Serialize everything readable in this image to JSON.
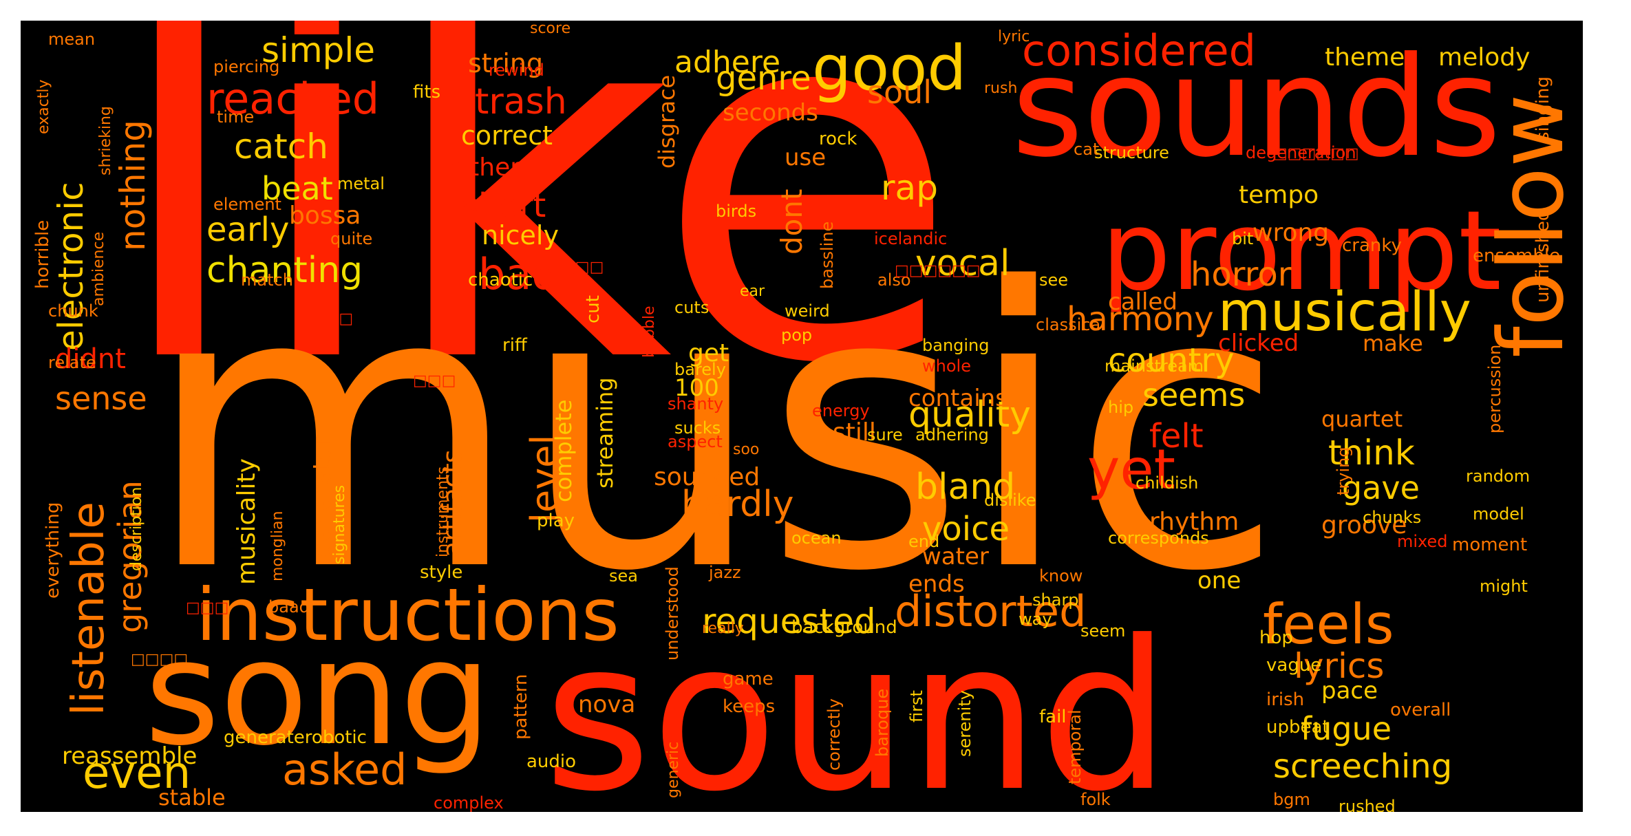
{
  "colors": {
    "page_background": "#ffffff",
    "cloud_background": "#000000",
    "red": "#ff2200",
    "orange": "#ff7700",
    "yellow": "#ffcc00",
    "pale_yellow": "#f0e000"
  },
  "words": [
    {
      "text": "like",
      "color": "#ff2200"
    },
    {
      "text": "music",
      "color": "#ff7700"
    },
    {
      "text": "sound",
      "color": "#ff2200"
    },
    {
      "text": "sounds",
      "color": "#ff2200"
    },
    {
      "text": "song",
      "color": "#ff7700"
    },
    {
      "text": "prompt",
      "color": "#ff2200"
    },
    {
      "text": "follow",
      "color": "#ff7700"
    },
    {
      "text": "instructions",
      "color": "#ff7700"
    },
    {
      "text": "good",
      "color": "#ffcc00"
    },
    {
      "text": "considered",
      "color": "#ff2200"
    },
    {
      "text": "musically",
      "color": "#ffcc00"
    },
    {
      "text": "feels",
      "color": "#ff7700"
    },
    {
      "text": "listenable",
      "color": "#ff7700"
    },
    {
      "text": "distorted",
      "color": "#ff7700"
    },
    {
      "text": "yet",
      "color": "#ff2200"
    },
    {
      "text": "even",
      "color": "#ffcc00"
    },
    {
      "text": "asked",
      "color": "#ff7700"
    },
    {
      "text": "reached",
      "color": "#ff2200"
    },
    {
      "text": "chanting",
      "color": "#f0e000"
    },
    {
      "text": "electronic",
      "color": "#ffcc00"
    },
    {
      "text": "quality",
      "color": "#ffcc00"
    },
    {
      "text": "requested",
      "color": "#ffcc00"
    },
    {
      "text": "screeching",
      "color": "#ffcc00"
    },
    {
      "text": "level",
      "color": "#ff7700"
    },
    {
      "text": "harmony",
      "color": "#ff7700"
    },
    {
      "text": "bland",
      "color": "#ffcc00"
    },
    {
      "text": "hardly",
      "color": "#ff7700"
    },
    {
      "text": "vocal",
      "color": "#ffcc00"
    },
    {
      "text": "lyrics",
      "color": "#ff7700"
    },
    {
      "text": "nothing",
      "color": "#ff7700"
    },
    {
      "text": "bad",
      "color": "#ff2200"
    },
    {
      "text": "trash",
      "color": "#ff2200"
    },
    {
      "text": "simple",
      "color": "#ffcc00"
    },
    {
      "text": "catch",
      "color": "#ffcc00"
    },
    {
      "text": "beat",
      "color": "#f0e000"
    },
    {
      "text": "early",
      "color": "#ffcc00"
    },
    {
      "text": "genre",
      "color": "#ffcc00"
    },
    {
      "text": "adhere",
      "color": "#ffcc00"
    },
    {
      "text": "soul",
      "color": "#ff7700"
    },
    {
      "text": "short",
      "color": "#ff2200"
    },
    {
      "text": "rap",
      "color": "#ffcc00"
    },
    {
      "text": "horror",
      "color": "#ff7700"
    },
    {
      "text": "country",
      "color": "#ffcc00"
    },
    {
      "text": "seems",
      "color": "#ffcc00"
    },
    {
      "text": "felt",
      "color": "#ff2200"
    },
    {
      "text": "think",
      "color": "#ffcc00"
    },
    {
      "text": "gave",
      "color": "#ffcc00"
    },
    {
      "text": "fugue",
      "color": "#ffcc00"
    },
    {
      "text": "voice",
      "color": "#ffcc00"
    },
    {
      "text": "gregorian",
      "color": "#ff7700"
    },
    {
      "text": "sense",
      "color": "#ff7700"
    },
    {
      "text": "didnt",
      "color": "#ff2200"
    },
    {
      "text": "dont",
      "color": "#ff7700"
    },
    {
      "text": "string",
      "color": "#ff7700"
    },
    {
      "text": "correct",
      "color": "#ffcc00"
    },
    {
      "text": "either",
      "color": "#ff2200"
    },
    {
      "text": "nicely",
      "color": "#ffcc00"
    },
    {
      "text": "bossa",
      "color": "#ff7700"
    },
    {
      "text": "theme",
      "color": "#ffcc00"
    },
    {
      "text": "melody",
      "color": "#ffcc00"
    },
    {
      "text": "seconds",
      "color": "#ff7700"
    },
    {
      "text": "tempo",
      "color": "#ffcc00"
    },
    {
      "text": "wrong",
      "color": "#ff7700"
    },
    {
      "text": "use",
      "color": "#ff7700"
    },
    {
      "text": "rock",
      "color": "#ffcc00"
    },
    {
      "text": "disgrace",
      "color": "#ff7700"
    },
    {
      "text": "called",
      "color": "#ff7700"
    },
    {
      "text": "clicked",
      "color": "#ff2200"
    },
    {
      "text": "make",
      "color": "#ff7700"
    },
    {
      "text": "contains",
      "color": "#ff7700"
    },
    {
      "text": "still",
      "color": "#ff7700"
    },
    {
      "text": "get",
      "color": "#ffcc00"
    },
    {
      "text": "100",
      "color": "#ffcc00"
    },
    {
      "text": "complete",
      "color": "#ffcc00"
    },
    {
      "text": "streaming",
      "color": "#ffcc00"
    },
    {
      "text": "artifacts",
      "color": "#ff7700"
    },
    {
      "text": "generator",
      "color": "#ff7700"
    },
    {
      "text": "musicality",
      "color": "#ffcc00"
    },
    {
      "text": "rhythm",
      "color": "#ff7700"
    },
    {
      "text": "groove",
      "color": "#ff7700"
    },
    {
      "text": "quartet",
      "color": "#ff7700"
    },
    {
      "text": "water",
      "color": "#ff7700"
    },
    {
      "text": "sounded",
      "color": "#ff7700"
    },
    {
      "text": "ends",
      "color": "#ff7700"
    },
    {
      "text": "one",
      "color": "#ffcc00"
    },
    {
      "text": "pace",
      "color": "#ffcc00"
    },
    {
      "text": "nova",
      "color": "#ff7700"
    },
    {
      "text": "reassemble",
      "color": "#ffcc00"
    },
    {
      "text": "stable",
      "color": "#ff7700"
    },
    {
      "text": "piercing",
      "color": "#ff7700"
    },
    {
      "text": "rewind",
      "color": "#ff2200"
    },
    {
      "text": "fits",
      "color": "#ffcc00"
    },
    {
      "text": "time",
      "color": "#ff7700"
    },
    {
      "text": "mean",
      "color": "#ff7700"
    },
    {
      "text": "score",
      "color": "#ff7700"
    },
    {
      "text": "lyric",
      "color": "#ff7700"
    },
    {
      "text": "rush",
      "color": "#ff7700"
    },
    {
      "text": "metal",
      "color": "#ffcc00"
    },
    {
      "text": "element",
      "color": "#ff7700"
    },
    {
      "text": "quite",
      "color": "#ff7700"
    },
    {
      "text": "birds",
      "color": "#ffcc00"
    },
    {
      "text": "bassline",
      "color": "#ff7700"
    },
    {
      "text": "icelandic",
      "color": "#ff2200"
    },
    {
      "text": "bit",
      "color": "#ffcc00"
    },
    {
      "text": "cranky",
      "color": "#ff7700"
    },
    {
      "text": "ensemble",
      "color": "#ff7700"
    },
    {
      "text": "singing",
      "color": "#ff7700"
    },
    {
      "text": "unfinished",
      "color": "#ff7700"
    },
    {
      "text": "structure",
      "color": "#ffcc00"
    },
    {
      "text": "degeneration",
      "color": "#ff2200"
    },
    {
      "text": "cat",
      "color": "#ff7700"
    },
    {
      "text": "also",
      "color": "#ff7700"
    },
    {
      "text": "see",
      "color": "#ffcc00"
    },
    {
      "text": "ear",
      "color": "#ffcc00"
    },
    {
      "text": "weird",
      "color": "#ffcc00"
    },
    {
      "text": "pop",
      "color": "#ffcc00"
    },
    {
      "text": "cuts",
      "color": "#ffcc00"
    },
    {
      "text": "riff",
      "color": "#ffcc00"
    },
    {
      "text": "barely",
      "color": "#ffcc00"
    },
    {
      "text": "banging",
      "color": "#ffcc00"
    },
    {
      "text": "whole",
      "color": "#ff2200"
    },
    {
      "text": "classical",
      "color": "#ff7700"
    },
    {
      "text": "mainstream",
      "color": "#ffcc00"
    },
    {
      "text": "hip",
      "color": "#ffcc00"
    },
    {
      "text": "percussion",
      "color": "#ff7700"
    },
    {
      "text": "trying",
      "color": "#ff7700"
    },
    {
      "text": "random",
      "color": "#ffcc00"
    },
    {
      "text": "model",
      "color": "#ffcc00"
    },
    {
      "text": "moment",
      "color": "#ff7700"
    },
    {
      "text": "might",
      "color": "#ffcc00"
    },
    {
      "text": "chunks",
      "color": "#ffcc00"
    },
    {
      "text": "mixed",
      "color": "#ff2200"
    },
    {
      "text": "corresponds",
      "color": "#ffcc00"
    },
    {
      "text": "childish",
      "color": "#ffcc00"
    },
    {
      "text": "dislike",
      "color": "#ffcc00"
    },
    {
      "text": "adhering",
      "color": "#ffcc00"
    },
    {
      "text": "sure",
      "color": "#ffcc00"
    },
    {
      "text": "energy",
      "color": "#ff2200"
    },
    {
      "text": "shanty",
      "color": "#ff2200"
    },
    {
      "text": "aspect",
      "color": "#ff2200"
    },
    {
      "text": "sucks",
      "color": "#ffcc00"
    },
    {
      "text": "soo",
      "color": "#ff7700"
    },
    {
      "text": "ocean",
      "color": "#ffcc00"
    },
    {
      "text": "end",
      "color": "#ffcc00"
    },
    {
      "text": "play",
      "color": "#ffcc00"
    },
    {
      "text": "jazz",
      "color": "#ff7700"
    },
    {
      "text": "sea",
      "color": "#ffcc00"
    },
    {
      "text": "style",
      "color": "#ffcc00"
    },
    {
      "text": "baad",
      "color": "#ff7700"
    },
    {
      "text": "know",
      "color": "#ff7700"
    },
    {
      "text": "sharp",
      "color": "#ffcc00"
    },
    {
      "text": "way",
      "color": "#ffcc00"
    },
    {
      "text": "seem",
      "color": "#ffcc00"
    },
    {
      "text": "background",
      "color": "#ffcc00"
    },
    {
      "text": "really",
      "color": "#ff7700"
    },
    {
      "text": "hop",
      "color": "#ffcc00"
    },
    {
      "text": "vague",
      "color": "#ffcc00"
    },
    {
      "text": "irish",
      "color": "#ff7700"
    },
    {
      "text": "upbeat",
      "color": "#ffcc00"
    },
    {
      "text": "overall",
      "color": "#ff7700"
    },
    {
      "text": "rushed",
      "color": "#ffcc00"
    },
    {
      "text": "bgm",
      "color": "#ff7700"
    },
    {
      "text": "folk",
      "color": "#ff7700"
    },
    {
      "text": "fail",
      "color": "#ffcc00"
    },
    {
      "text": "game",
      "color": "#ff7700"
    },
    {
      "text": "keeps",
      "color": "#ff7700"
    },
    {
      "text": "generaterobotic",
      "color": "#ffcc00"
    },
    {
      "text": "audio",
      "color": "#ffcc00"
    },
    {
      "text": "complex",
      "color": "#ff2200"
    },
    {
      "text": "pattern",
      "color": "#ff7700"
    },
    {
      "text": "understood",
      "color": "#ff7700"
    },
    {
      "text": "generic",
      "color": "#ff7700"
    },
    {
      "text": "temporal",
      "color": "#ff7700"
    },
    {
      "text": "correctly",
      "color": "#ff7700"
    },
    {
      "text": "baroque",
      "color": "#ff7700"
    },
    {
      "text": "first",
      "color": "#ffcc00"
    },
    {
      "text": "serenity",
      "color": "#ffcc00"
    },
    {
      "text": "cut",
      "color": "#ffcc00"
    },
    {
      "text": "chaotic",
      "color": "#ffcc00"
    },
    {
      "text": "bubble",
      "color": "#ff2200"
    },
    {
      "text": "match",
      "color": "#ff7700"
    },
    {
      "text": "chunk",
      "color": "#ff7700"
    },
    {
      "text": "relate",
      "color": "#ff7700"
    },
    {
      "text": "horrible",
      "color": "#ff7700"
    },
    {
      "text": "ambience",
      "color": "#ff7700"
    },
    {
      "text": "exactly",
      "color": "#ff7700"
    },
    {
      "text": "shrieking",
      "color": "#ff7700"
    },
    {
      "text": "everything",
      "color": "#ff7700"
    },
    {
      "text": "description",
      "color": "#ffcc00"
    },
    {
      "text": "monglian",
      "color": "#ff7700"
    },
    {
      "text": "signatures",
      "color": "#ffcc00"
    },
    {
      "text": "instruments",
      "color": "#ff7700"
    },
    {
      "text": "□□□□□□",
      "color": "#ff2200"
    },
    {
      "text": "□□□□□□",
      "color": "#ff2200"
    },
    {
      "text": "□□□",
      "color": "#ff2200"
    },
    {
      "text": "□□□□",
      "color": "#ff2200"
    },
    {
      "text": "□□□",
      "color": "#ff2200"
    },
    {
      "text": "□□□",
      "color": "#ff2200"
    },
    {
      "text": "□□□□",
      "color": "#ff7700"
    }
  ]
}
